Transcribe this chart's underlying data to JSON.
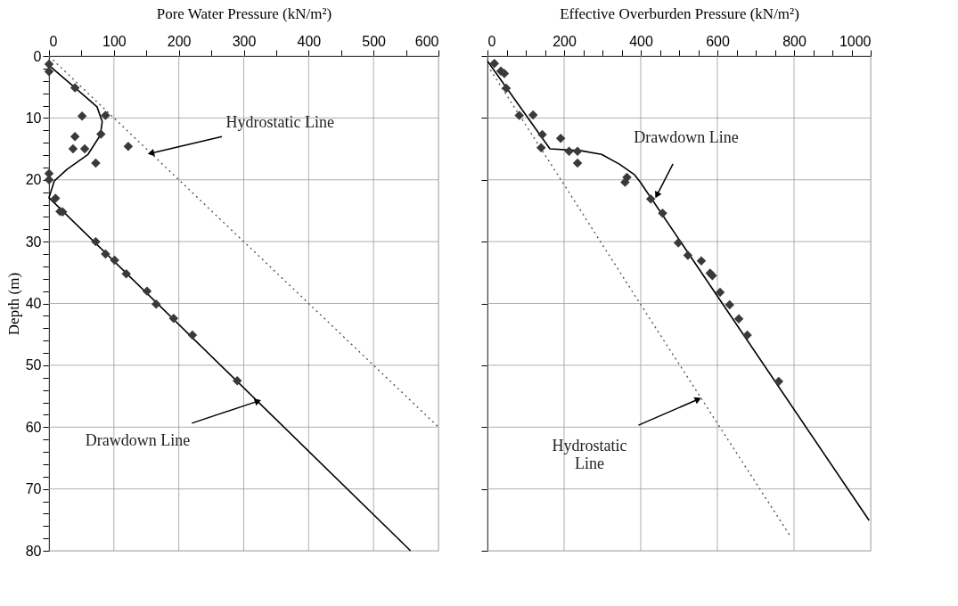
{
  "chart_data": [
    {
      "type": "scatter",
      "xlabel": "Pore Water Pressure (kN/m²)",
      "ylabel": "Depth (m)",
      "xlim": [
        0,
        600
      ],
      "ylim": [
        80,
        0
      ],
      "xticks": [
        0,
        {
          "value": 50,
          "label": null
        },
        100,
        {
          "value": 150,
          "label": null
        },
        200,
        {
          "value": 250,
          "label": null
        },
        300,
        {
          "value": 350,
          "label": null
        },
        400,
        {
          "value": 450,
          "label": null
        },
        500,
        {
          "value": 550,
          "label": null
        },
        600
      ],
      "yticks": [
        0,
        {
          "value": 2,
          "label": null
        },
        {
          "value": 4,
          "label": null
        },
        {
          "value": 6,
          "label": null
        },
        {
          "value": 8,
          "label": null
        },
        10,
        {
          "value": 12,
          "label": null
        },
        {
          "value": 14,
          "label": null
        },
        {
          "value": 16,
          "label": null
        },
        {
          "value": 18,
          "label": null
        },
        20,
        {
          "value": 22,
          "label": null
        },
        {
          "value": 24,
          "label": null
        },
        {
          "value": 26,
          "label": null
        },
        {
          "value": 28,
          "label": null
        },
        30,
        {
          "value": 32,
          "label": null
        },
        {
          "value": 34,
          "label": null
        },
        {
          "value": 36,
          "label": null
        },
        {
          "value": 38,
          "label": null
        },
        40,
        {
          "value": 42,
          "label": null
        },
        {
          "value": 44,
          "label": null
        },
        {
          "value": 46,
          "label": null
        },
        {
          "value": 48,
          "label": null
        },
        50,
        {
          "value": 52,
          "label": null
        },
        {
          "value": 54,
          "label": null
        },
        {
          "value": 56,
          "label": null
        },
        {
          "value": 58,
          "label": null
        },
        60,
        {
          "value": 62,
          "label": null
        },
        {
          "value": 64,
          "label": null
        },
        {
          "value": 66,
          "label": null
        },
        {
          "value": 68,
          "label": null
        },
        70,
        {
          "value": 72,
          "label": null
        },
        {
          "value": 74,
          "label": null
        },
        {
          "value": 76,
          "label": null
        },
        {
          "value": 78,
          "label": null
        },
        80
      ],
      "grid": true,
      "series": [
        {
          "type": "line",
          "line_style": "dotted",
          "marker": "none",
          "color": "#555555",
          "x": [
            0,
            600
          ],
          "values": [
            0,
            60
          ]
        },
        {
          "type": "line",
          "line_style": "solid",
          "marker": "none",
          "color": "#000000",
          "x": [
            0,
            40,
            74,
            82,
            79,
            60,
            28,
            8,
            0,
            557
          ],
          "values": [
            1.5,
            5.1,
            8.2,
            10.6,
            12.8,
            15.9,
            18.3,
            20.2,
            22.9,
            80
          ]
        },
        {
          "marker": "diamond",
          "color": "#3a3a3a",
          "x": [
            0,
            0,
            40,
            51,
            87,
            80,
            40,
            37,
            55,
            122,
            72,
            0,
            0,
            10,
            17,
            21,
            72,
            87,
            101,
            119,
            151,
            165,
            192,
            221,
            290
          ],
          "values": [
            1.3,
            2.5,
            5.1,
            9.7,
            9.6,
            12.6,
            13.0,
            15.0,
            15.0,
            14.6,
            17.3,
            19.0,
            20.0,
            23.0,
            25.1,
            25.2,
            30.0,
            32.0,
            33.0,
            35.2,
            38.0,
            40.1,
            42.4,
            45.1,
            52.5
          ]
        }
      ],
      "annotations": [
        {
          "text": "Hydrostatic Line",
          "x": 157,
          "y": 15.7
        },
        {
          "text": "Drawdown Line",
          "x": 322,
          "y": 55.8
        }
      ]
    },
    {
      "type": "scatter",
      "xlabel": "Effective Overburden Pressure (kN/m²)",
      "xlim": [
        0,
        1000
      ],
      "ylim": [
        80,
        0
      ],
      "xticks": [
        0,
        {
          "value": 50,
          "label": null
        },
        {
          "value": 100,
          "label": null
        },
        {
          "value": 150,
          "label": null
        },
        200,
        {
          "value": 250,
          "label": null
        },
        {
          "value": 300,
          "label": null
        },
        {
          "value": 350,
          "label": null
        },
        400,
        {
          "value": 450,
          "label": null
        },
        {
          "value": 500,
          "label": null
        },
        {
          "value": 550,
          "label": null
        },
        600,
        {
          "value": 650,
          "label": null
        },
        {
          "value": 700,
          "label": null
        },
        {
          "value": 750,
          "label": null
        },
        800,
        {
          "value": 850,
          "label": null
        },
        {
          "value": 900,
          "label": null
        },
        {
          "value": 950,
          "label": null
        },
        1000
      ],
      "yticks": [
        0,
        10,
        20,
        30,
        40,
        50,
        60,
        70,
        80
      ],
      "tick_labels": "x",
      "grid": true,
      "series": [
        {
          "type": "line",
          "line_style": "dotted",
          "marker": "none",
          "color": "#555555",
          "x": [
            0,
            198,
            403,
            792
          ],
          "values": [
            1.5,
            20.6,
            40.5,
            77.8
          ]
        },
        {
          "type": "line",
          "line_style": "solid",
          "marker": "none",
          "color": "#000000",
          "x": [
            0,
            163,
            244,
            298,
            345,
            384,
            399,
            996
          ],
          "values": [
            0.8,
            15.0,
            15.3,
            15.9,
            17.5,
            19.2,
            20.4,
            75.1
          ]
        },
        {
          "marker": "diamond",
          "color": "#3a3a3a",
          "x": [
            18,
            35,
            44,
            49,
            83,
            119,
            143,
            191,
            140,
            213,
            235,
            235,
            364,
            359,
            426,
            457,
            498,
            523,
            558,
            581,
            587,
            607,
            632,
            656,
            678,
            760
          ],
          "values": [
            1.2,
            2.4,
            2.8,
            5.2,
            9.6,
            9.5,
            12.7,
            13.3,
            14.8,
            15.4,
            15.4,
            17.3,
            19.6,
            20.4,
            23.1,
            25.4,
            30.2,
            32.2,
            33.1,
            35.1,
            35.5,
            38.2,
            40.2,
            42.5,
            45.1,
            52.6
          ]
        }
      ],
      "annotations": [
        {
          "text": "Drawdown Line",
          "x": 442,
          "y": 22.5
        },
        {
          "text": "Hydrostatic Line",
          "x": 550,
          "y": 55.5
        }
      ]
    }
  ]
}
